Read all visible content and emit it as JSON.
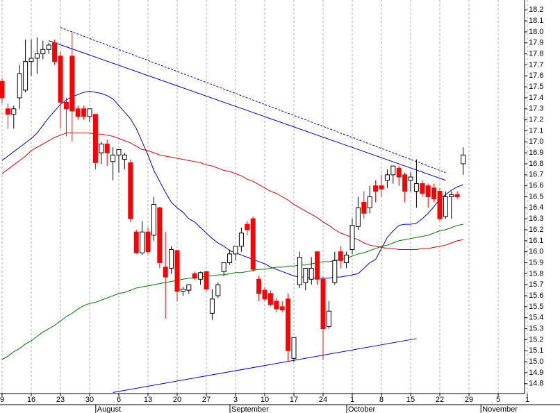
{
  "chart_data": {
    "type": "candlestick",
    "grid": true,
    "up_color": "#ffffff",
    "down_color": "#ff0000",
    "outline_color": "#000000",
    "categories": [
      "9",
      null,
      null,
      null,
      null,
      "16",
      null,
      null,
      null,
      null,
      "23",
      null,
      null,
      null,
      null,
      "30",
      null,
      null,
      null,
      null,
      "6",
      null,
      null,
      null,
      null,
      "13",
      null,
      null,
      null,
      null,
      "20",
      null,
      null,
      null,
      null,
      "27",
      null,
      null,
      null,
      null,
      "3",
      null,
      null,
      null,
      null,
      "10",
      null,
      null,
      null,
      null,
      "17",
      null,
      null,
      null,
      null,
      "24",
      null,
      null,
      null,
      null,
      "1",
      null,
      null,
      null,
      null,
      "8",
      null,
      null,
      null,
      null,
      "15",
      null,
      null,
      null,
      null,
      "22",
      null,
      null,
      null,
      null,
      "29",
      null,
      null,
      null,
      null,
      "5",
      null,
      null,
      null,
      null,
      "1"
    ],
    "month_labels": [
      null,
      null,
      null,
      null,
      null,
      null,
      null,
      null,
      null,
      null,
      null,
      null,
      null,
      null,
      null,
      null,
      null,
      "August",
      null,
      null,
      null,
      null,
      null,
      null,
      null,
      null,
      null,
      null,
      null,
      null,
      null,
      null,
      null,
      null,
      null,
      null,
      null,
      null,
      null,
      null,
      "September",
      null,
      null,
      null,
      null,
      null,
      null,
      null,
      null,
      null,
      null,
      null,
      null,
      null,
      null,
      null,
      null,
      null,
      null,
      null,
      "October",
      null,
      null,
      null,
      null,
      null,
      null,
      null,
      null,
      null,
      null,
      null,
      null,
      null,
      null,
      null,
      null,
      null,
      null,
      null,
      null,
      null,
      null,
      "November",
      null,
      null,
      null,
      null,
      null,
      null,
      null
    ],
    "open": [
      17.55,
      17.3,
      17.25,
      17.4,
      17.47,
      17.73,
      17.76,
      17.8,
      17.84,
      17.9,
      17.78,
      17.36,
      17.78,
      17.3,
      17.3,
      17.23,
      17.25,
      16.9,
      16.98,
      16.82,
      16.88,
      16.84,
      16.81,
      16.18,
      15.99,
      16.18,
      16.15,
      16.4,
      15.86,
      15.85,
      16.01,
      15.64,
      15.65,
      15.8,
      15.75,
      15.82,
      15.44,
      15.6,
      15.82,
      15.9,
      15.98,
      16.05,
      16.25,
      16.3,
      15.75,
      15.65,
      15.62,
      15.55,
      15.5,
      15.57,
      15.03,
      15.7,
      15.72,
      15.75,
      16.0,
      15.75,
      15.32,
      15.72,
      16.0,
      15.9,
      16.02,
      16.23,
      16.45,
      16.4,
      16.6,
      16.6,
      16.65,
      16.7,
      16.76,
      16.7,
      16.65,
      16.55,
      16.62,
      16.6,
      16.58,
      16.55,
      16.32,
      16.5,
      16.52,
      16.8,
      null,
      null,
      null,
      null,
      null,
      null,
      null,
      null,
      null,
      null,
      null
    ],
    "high": [
      17.58,
      17.35,
      17.33,
      17.7,
      17.93,
      17.93,
      17.95,
      17.92,
      17.9,
      17.93,
      17.82,
      17.4,
      18.0,
      17.33,
      17.33,
      17.3,
      17.25,
      17.0,
      17.02,
      16.95,
      16.93,
      16.9,
      16.84,
      16.2,
      16.28,
      16.22,
      16.5,
      16.41,
      16.18,
      16.05,
      16.02,
      15.68,
      15.7,
      15.82,
      15.82,
      15.82,
      15.66,
      15.72,
      15.9,
      16.02,
      16.05,
      16.22,
      16.28,
      16.32,
      15.78,
      15.68,
      15.65,
      15.58,
      15.55,
      15.62,
      15.22,
      16.0,
      15.85,
      15.95,
      16.0,
      15.77,
      15.55,
      16.0,
      16.05,
      16.0,
      16.3,
      16.5,
      16.55,
      16.6,
      16.65,
      16.7,
      16.75,
      16.78,
      16.78,
      16.72,
      16.72,
      16.84,
      16.65,
      16.62,
      16.62,
      16.58,
      16.55,
      16.55,
      16.55,
      16.95,
      null,
      null,
      null,
      null,
      null,
      null,
      null,
      null,
      null,
      null,
      null
    ],
    "low": [
      17.35,
      17.12,
      17.12,
      17.3,
      17.45,
      17.6,
      17.62,
      17.75,
      17.8,
      17.7,
      17.12,
      17.05,
      17.0,
      17.2,
      17.2,
      17.18,
      16.75,
      16.8,
      16.78,
      16.65,
      16.72,
      16.75,
      16.27,
      15.98,
      15.97,
      15.98,
      16.1,
      15.85,
      15.39,
      15.8,
      15.55,
      15.6,
      15.62,
      15.74,
      15.7,
      15.64,
      15.38,
      15.58,
      15.78,
      15.88,
      15.92,
      16.0,
      16.15,
      15.82,
      15.55,
      15.55,
      15.5,
      15.45,
      15.45,
      15.0,
      15.0,
      15.67,
      15.65,
      15.7,
      15.7,
      15.02,
      15.3,
      15.7,
      15.85,
      15.85,
      15.98,
      16.2,
      16.3,
      16.35,
      16.45,
      16.5,
      16.58,
      16.62,
      16.6,
      16.45,
      16.55,
      16.4,
      16.5,
      16.4,
      16.45,
      16.28,
      16.3,
      16.3,
      16.48,
      16.7,
      null,
      null,
      null,
      null,
      null,
      null,
      null,
      null,
      null,
      null,
      null
    ],
    "close": [
      17.4,
      17.25,
      17.3,
      17.62,
      17.73,
      17.76,
      17.8,
      17.84,
      17.88,
      17.73,
      17.36,
      17.3,
      17.28,
      17.23,
      17.23,
      17.3,
      16.81,
      16.98,
      16.9,
      16.88,
      16.93,
      16.88,
      16.3,
      15.99,
      16.18,
      16.0,
      16.43,
      15.9,
      15.77,
      16.02,
      15.64,
      15.66,
      15.7,
      15.76,
      15.81,
      15.66,
      15.57,
      15.7,
      15.9,
      15.98,
      16.05,
      16.17,
      16.2,
      15.84,
      15.62,
      15.57,
      15.52,
      15.48,
      15.47,
      15.1,
      15.22,
      15.95,
      15.85,
      15.85,
      15.75,
      15.3,
      15.46,
      15.92,
      15.92,
      15.97,
      16.24,
      16.4,
      16.35,
      16.5,
      16.55,
      16.57,
      16.7,
      16.78,
      16.68,
      16.55,
      16.68,
      16.62,
      16.53,
      16.5,
      16.48,
      16.3,
      16.5,
      16.52,
      16.5,
      16.88,
      null,
      null,
      null,
      null,
      null,
      null,
      null,
      null,
      null,
      null,
      null
    ],
    "series": [
      {
        "color": "#0000cc",
        "values": [
          16.83,
          16.87,
          16.91,
          16.95,
          16.99,
          17.03,
          17.08,
          17.15,
          17.22,
          17.28,
          17.34,
          17.38,
          17.41,
          17.43,
          17.45,
          17.46,
          17.45,
          17.44,
          17.42,
          17.39,
          17.33,
          17.27,
          17.21,
          17.12,
          17.0,
          16.88,
          16.74,
          16.64,
          16.54,
          16.45,
          16.4,
          16.36,
          16.3,
          16.27,
          16.22,
          16.17,
          16.12,
          16.08,
          16.05,
          16.01,
          15.99,
          15.97,
          15.95,
          15.93,
          15.91,
          15.89,
          15.86,
          15.84,
          15.82,
          15.8,
          15.78,
          15.77,
          15.77,
          15.76,
          15.76,
          15.76,
          15.76,
          15.77,
          15.77,
          15.78,
          15.79,
          15.8,
          15.85,
          15.9,
          15.93,
          16.03,
          16.13,
          16.19,
          16.24,
          16.25,
          16.25,
          16.26,
          16.3,
          16.35,
          16.41,
          16.48,
          16.52,
          16.56,
          16.59,
          16.61,
          null,
          null,
          null,
          null,
          null,
          null,
          null,
          null,
          null,
          null,
          null
        ]
      },
      {
        "color": "#dd0000",
        "values": [
          16.71,
          16.75,
          16.79,
          16.83,
          16.87,
          16.92,
          16.95,
          16.98,
          17.01,
          17.04,
          17.06,
          17.08,
          17.08,
          17.08,
          17.08,
          17.08,
          17.07,
          17.07,
          17.06,
          17.05,
          17.03,
          17.01,
          16.99,
          16.96,
          16.93,
          16.92,
          16.9,
          16.88,
          16.87,
          16.86,
          16.85,
          16.84,
          16.83,
          16.82,
          16.81,
          16.79,
          16.78,
          16.76,
          16.74,
          16.73,
          16.71,
          16.69,
          16.66,
          16.64,
          16.61,
          16.58,
          16.55,
          16.53,
          16.5,
          16.47,
          16.43,
          16.4,
          16.37,
          16.34,
          16.31,
          16.27,
          16.24,
          16.2,
          16.17,
          16.15,
          16.13,
          16.11,
          16.08,
          16.06,
          16.05,
          16.04,
          16.03,
          16.03,
          16.02,
          16.02,
          16.02,
          16.02,
          16.03,
          16.03,
          16.04,
          16.05,
          16.06,
          16.08,
          16.1,
          16.11,
          null,
          null,
          null,
          null,
          null,
          null,
          null,
          null,
          null,
          null,
          null
        ]
      },
      {
        "color": "#007700",
        "values": [
          15.02,
          15.05,
          15.09,
          15.12,
          15.16,
          15.19,
          15.23,
          15.27,
          15.3,
          15.33,
          15.37,
          15.41,
          15.44,
          15.48,
          15.51,
          15.53,
          15.54,
          15.56,
          15.58,
          15.6,
          15.62,
          15.63,
          15.65,
          15.67,
          15.68,
          15.69,
          15.7,
          15.71,
          15.72,
          15.73,
          15.74,
          15.75,
          15.76,
          15.76,
          15.77,
          15.78,
          15.78,
          15.79,
          15.79,
          15.8,
          15.81,
          15.81,
          15.82,
          15.83,
          15.84,
          15.84,
          15.85,
          15.86,
          15.86,
          15.87,
          15.87,
          15.88,
          15.88,
          15.89,
          15.9,
          15.91,
          15.91,
          15.92,
          15.93,
          15.94,
          15.96,
          15.98,
          15.99,
          16.01,
          16.03,
          16.05,
          16.06,
          16.08,
          16.1,
          16.11,
          16.12,
          16.13,
          16.14,
          16.15,
          16.17,
          16.19,
          16.2,
          16.22,
          16.24,
          16.25,
          null,
          null,
          null,
          null,
          null,
          null,
          null,
          null,
          null,
          null,
          null
        ]
      }
    ],
    "trendlines": [
      {
        "color": "#0000cc",
        "dashed": false,
        "x": [
          8,
          76
        ],
        "values": [
          17.92,
          16.65
        ]
      },
      {
        "color": "#0000cc",
        "dashed": true,
        "x": [
          10,
          76
        ],
        "values": [
          18.04,
          16.72
        ]
      },
      {
        "color": "#0000cc",
        "dashed": false,
        "x": [
          19,
          71
        ],
        "values": [
          14.72,
          15.21
        ]
      }
    ],
    "ylim": [
      14.71,
      18.29
    ],
    "yticks": [
      14.8,
      14.9,
      {
        "value": 15.0,
        "label": "15.0"
      },
      15.1,
      15.2,
      15.3,
      15.4,
      15.5,
      15.6,
      15.7,
      15.8,
      15.9,
      {
        "value": 16.0,
        "label": "16.0"
      },
      16.1,
      16.2,
      16.3,
      16.4,
      16.5,
      16.6,
      16.7,
      16.8,
      16.9,
      {
        "value": 17.0,
        "label": "17.0"
      },
      17.1,
      17.2,
      17.3,
      17.4,
      17.5,
      17.6,
      17.7,
      17.8,
      17.9,
      {
        "value": 18.0,
        "label": "18.0"
      },
      18.1,
      18.2
    ]
  }
}
